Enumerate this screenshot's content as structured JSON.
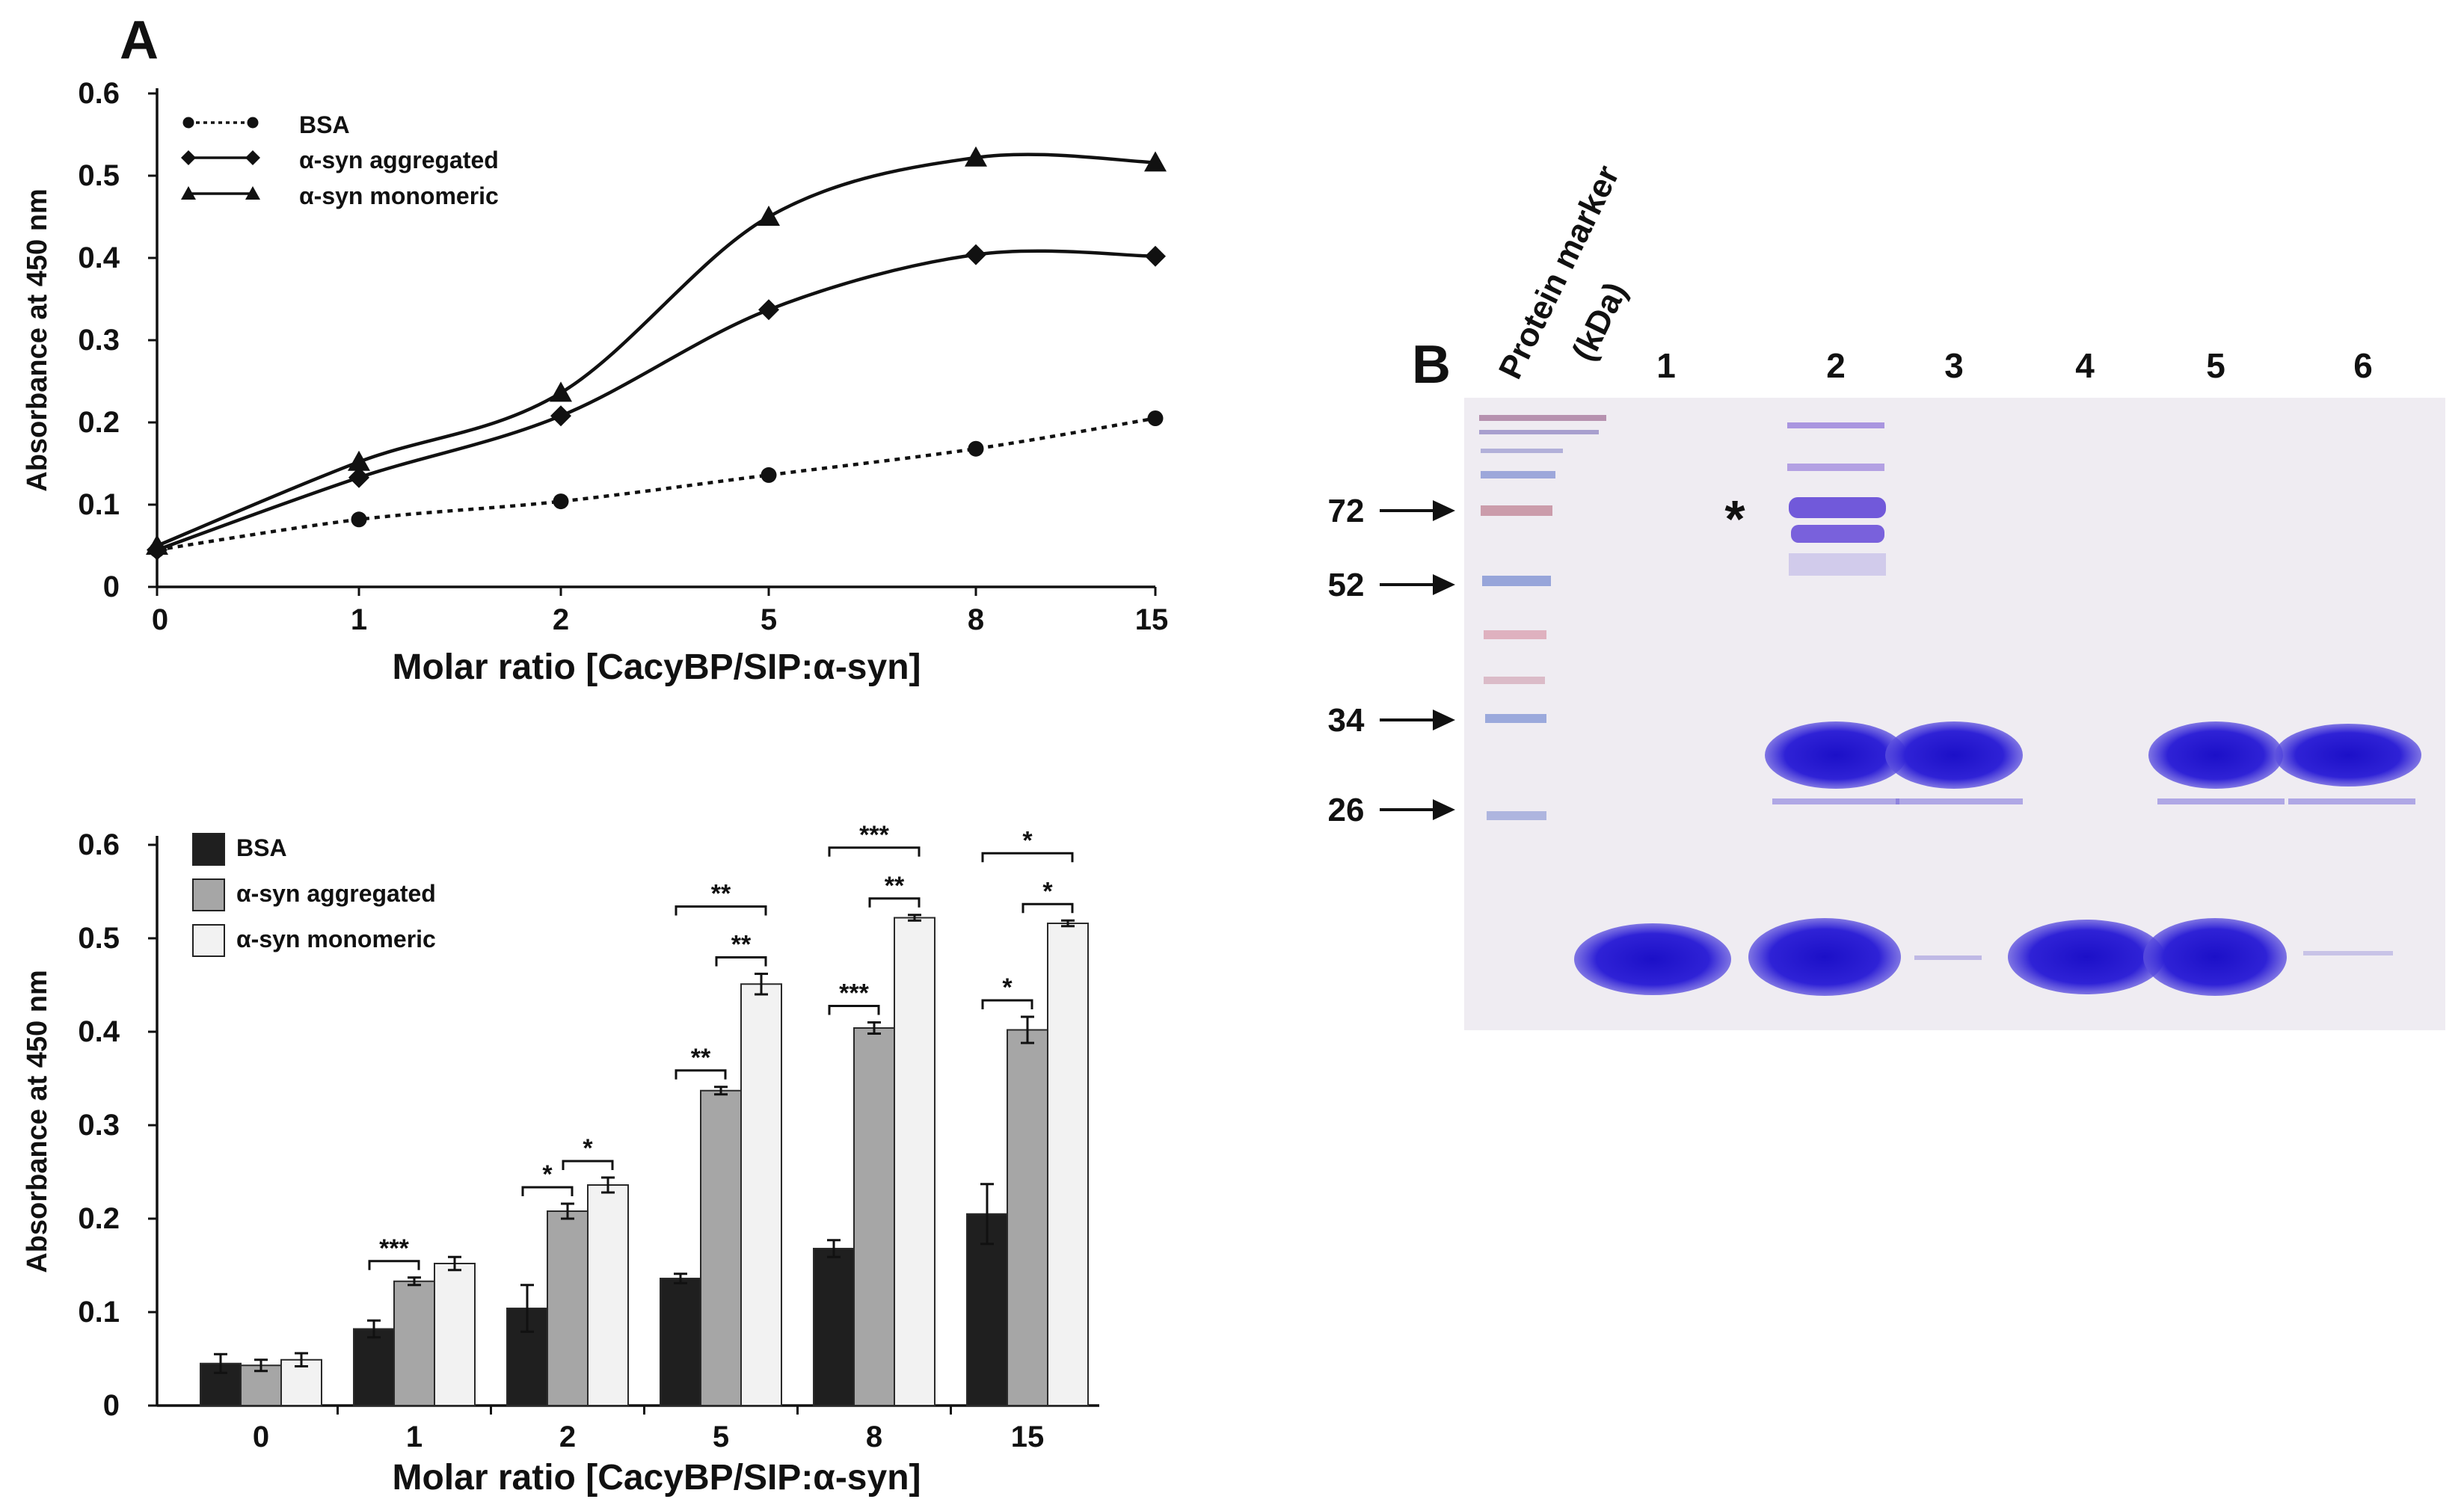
{
  "panel_a_label": "A",
  "panel_b_label": "B",
  "chart_data": [
    {
      "type": "line",
      "categories": [
        "0",
        "1",
        "2",
        "5",
        "8",
        "15"
      ],
      "series": [
        {
          "name": "BSA",
          "values": [
            0.045,
            0.082,
            0.104,
            0.136,
            0.168,
            0.205
          ],
          "marker": "circle",
          "style": "dotted"
        },
        {
          "name": "α-syn aggregated",
          "values": [
            0.045,
            0.133,
            0.208,
            0.337,
            0.404,
            0.402
          ],
          "marker": "diamond",
          "style": "solid"
        },
        {
          "name": "α-syn monomeric",
          "values": [
            0.05,
            0.152,
            0.236,
            0.45,
            0.522,
            0.516
          ],
          "marker": "triangle",
          "style": "solid"
        }
      ],
      "xlabel": "Molar ratio [CacyBP/SIP:α-syn]",
      "ylabel": "Absorbance at 450 nm",
      "yticks": [
        "0",
        "0.1",
        "0.2",
        "0.3",
        "0.4",
        "0.5",
        "0.6"
      ],
      "ylim": [
        0,
        0.6
      ],
      "grid": false,
      "legend_position": "top-left"
    },
    {
      "type": "bar",
      "categories": [
        "0",
        "1",
        "2",
        "5",
        "8",
        "15"
      ],
      "series": [
        {
          "name": "BSA",
          "values": [
            0.045,
            0.082,
            0.104,
            0.136,
            0.168,
            0.205
          ],
          "errors": [
            0.01,
            0.009,
            0.025,
            0.005,
            0.009,
            0.032
          ],
          "color": "#1f1f1f"
        },
        {
          "name": "α-syn aggregated",
          "values": [
            0.043,
            0.133,
            0.208,
            0.337,
            0.404,
            0.402
          ],
          "errors": [
            0.006,
            0.004,
            0.008,
            0.004,
            0.006,
            0.014
          ],
          "color": "#a6a6a6"
        },
        {
          "name": "α-syn monomeric",
          "values": [
            0.049,
            0.152,
            0.236,
            0.451,
            0.522,
            0.516
          ],
          "errors": [
            0.007,
            0.007,
            0.008,
            0.011,
            0.003,
            0.003
          ],
          "color": "#f2f2f2"
        }
      ],
      "significance": [
        {
          "category": 1,
          "from": 0,
          "to": 1,
          "label": "***",
          "level": 0
        },
        {
          "category": 2,
          "from": 0,
          "to": 1,
          "label": "*",
          "level": 0
        },
        {
          "category": 2,
          "from": 1,
          "to": 2,
          "label": "*",
          "level": 0
        },
        {
          "category": 3,
          "from": 0,
          "to": 1,
          "label": "**",
          "level": 0
        },
        {
          "category": 3,
          "from": 1,
          "to": 2,
          "label": "**",
          "level": 0
        },
        {
          "category": 3,
          "from": 0,
          "to": 2,
          "label": "**",
          "level": 1
        },
        {
          "category": 4,
          "from": 0,
          "to": 1,
          "label": "***",
          "level": 0
        },
        {
          "category": 4,
          "from": 1,
          "to": 2,
          "label": "**",
          "level": 0
        },
        {
          "category": 4,
          "from": 0,
          "to": 2,
          "label": "***",
          "level": 1
        },
        {
          "category": 5,
          "from": 0,
          "to": 1,
          "label": "*",
          "level": 0
        },
        {
          "category": 5,
          "from": 1,
          "to": 2,
          "label": "*",
          "level": 0
        },
        {
          "category": 5,
          "from": 0,
          "to": 2,
          "label": "*",
          "level": 1
        }
      ],
      "xlabel": "Molar ratio [CacyBP/SIP:α-syn]",
      "ylabel": "Absorbance at 450 nm",
      "yticks": [
        "0",
        "0.1",
        "0.2",
        "0.3",
        "0.4",
        "0.5",
        "0.6"
      ],
      "ylim": [
        0,
        0.6
      ],
      "grid": false,
      "legend_position": "top-left"
    }
  ],
  "gel": {
    "marker_header": [
      "Protein marker",
      "(kDa)"
    ],
    "lane_labels": [
      "1",
      "2",
      "3",
      "4",
      "5",
      "6"
    ],
    "marker_sizes": [
      "72",
      "52",
      "34",
      "26"
    ],
    "asterisk": "*",
    "gel_background": "#ebe8ef",
    "band_color": "#2a1bd0"
  }
}
